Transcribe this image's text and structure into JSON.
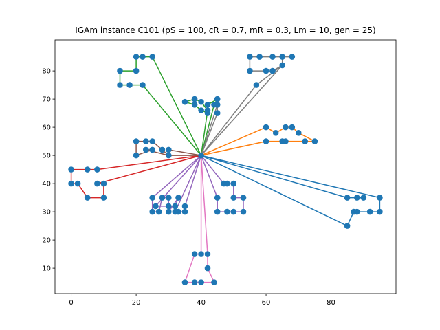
{
  "chart_data": {
    "type": "line",
    "title": "IGAm instance C101 ($pS = 100, cR = 0.7, mR = 0.3, Lm = 10, gen = 25$)",
    "title_display": "IGAm instance C101 (pS = 100, cR = 0.7, mR = 0.3, Lm = 10, gen = 25)",
    "xlabel": "",
    "ylabel": "",
    "xlim": [
      -5,
      100
    ],
    "ylim": [
      1,
      91
    ],
    "xticks": [
      0,
      20,
      40,
      60,
      80
    ],
    "yticks": [
      10,
      20,
      30,
      40,
      50,
      60,
      70,
      80
    ],
    "grid": false,
    "depot": [
      40,
      50
    ],
    "marker_color": "#1f77b4",
    "routes": [
      {
        "color": "#1f77b4",
        "points": [
          [
            40,
            50
          ],
          [
            95,
            35
          ],
          [
            95,
            30
          ],
          [
            92,
            30
          ],
          [
            88,
            30
          ],
          [
            87,
            30
          ],
          [
            85,
            25
          ],
          [
            40,
            50
          ],
          [
            85,
            35
          ],
          [
            88,
            35
          ],
          [
            90,
            35
          ]
        ]
      },
      {
        "color": "#ff7f0e",
        "points": [
          [
            40,
            50
          ],
          [
            60,
            55
          ],
          [
            65,
            55
          ],
          [
            66,
            55
          ],
          [
            72,
            55
          ],
          [
            75,
            55
          ],
          [
            70,
            58
          ],
          [
            68,
            60
          ],
          [
            66,
            60
          ],
          [
            63,
            58
          ],
          [
            60,
            60
          ],
          [
            40,
            50
          ]
        ]
      },
      {
        "color": "#2ca02c",
        "points": [
          [
            40,
            50
          ],
          [
            44,
            68
          ],
          [
            45,
            70
          ],
          [
            42,
            68
          ],
          [
            42,
            65
          ],
          [
            40,
            66
          ],
          [
            38,
            68
          ],
          [
            35,
            69
          ],
          [
            38,
            70
          ],
          [
            40,
            69
          ],
          [
            42,
            66
          ],
          [
            40,
            50
          ],
          [
            22,
            75
          ],
          [
            18,
            75
          ],
          [
            15,
            75
          ],
          [
            15,
            80
          ],
          [
            20,
            80
          ],
          [
            20,
            85
          ],
          [
            22,
            85
          ],
          [
            25,
            85
          ],
          [
            40,
            50
          ]
        ]
      },
      {
        "color": "#d62728",
        "points": [
          [
            40,
            50
          ],
          [
            8,
            45
          ],
          [
            5,
            45
          ],
          [
            0,
            45
          ],
          [
            0,
            40
          ],
          [
            2,
            40
          ],
          [
            5,
            35
          ],
          [
            10,
            35
          ],
          [
            10,
            40
          ],
          [
            8,
            40
          ],
          [
            40,
            50
          ]
        ]
      },
      {
        "color": "#9467bd",
        "points": [
          [
            40,
            50
          ],
          [
            45,
            35
          ],
          [
            45,
            30
          ],
          [
            48,
            30
          ],
          [
            50,
            30
          ],
          [
            53,
            30
          ],
          [
            53,
            35
          ],
          [
            50,
            35
          ],
          [
            50,
            40
          ],
          [
            48,
            40
          ],
          [
            47,
            40
          ],
          [
            40,
            50
          ],
          [
            25,
            35
          ],
          [
            25,
            30
          ],
          [
            27,
            30
          ],
          [
            28,
            35
          ],
          [
            30,
            35
          ],
          [
            30,
            30
          ],
          [
            33,
            35
          ],
          [
            32,
            32
          ],
          [
            30,
            32
          ],
          [
            26,
            32
          ],
          [
            40,
            50
          ],
          [
            35,
            32
          ],
          [
            35,
            30
          ],
          [
            33,
            30
          ],
          [
            32,
            30
          ],
          [
            40,
            50
          ]
        ]
      },
      {
        "color": "#8c564b",
        "points": [
          [
            40,
            50
          ],
          [
            30,
            52
          ],
          [
            30,
            50
          ],
          [
            28,
            52
          ],
          [
            25,
            55
          ],
          [
            23,
            55
          ],
          [
            20,
            55
          ],
          [
            20,
            50
          ],
          [
            25,
            52
          ],
          [
            23,
            52
          ],
          [
            30,
            50
          ],
          [
            40,
            50
          ]
        ]
      },
      {
        "color": "#e377c2",
        "points": [
          [
            40,
            50
          ],
          [
            42,
            15
          ],
          [
            42,
            10
          ],
          [
            44,
            5
          ],
          [
            40,
            5
          ],
          [
            38,
            5
          ],
          [
            35,
            5
          ],
          [
            38,
            15
          ],
          [
            40,
            15
          ],
          [
            40,
            50
          ]
        ]
      },
      {
        "color": "#7f7f7f",
        "points": [
          [
            40,
            50
          ],
          [
            45,
            65
          ],
          [
            45,
            68
          ],
          [
            40,
            50
          ],
          [
            65,
            82
          ],
          [
            65,
            85
          ],
          [
            68,
            85
          ],
          [
            65,
            85
          ],
          [
            62,
            85
          ],
          [
            58,
            85
          ],
          [
            55,
            85
          ],
          [
            55,
            80
          ],
          [
            60,
            80
          ],
          [
            62,
            80
          ],
          [
            65,
            82
          ],
          [
            57,
            75
          ],
          [
            40,
            50
          ]
        ]
      }
    ]
  }
}
